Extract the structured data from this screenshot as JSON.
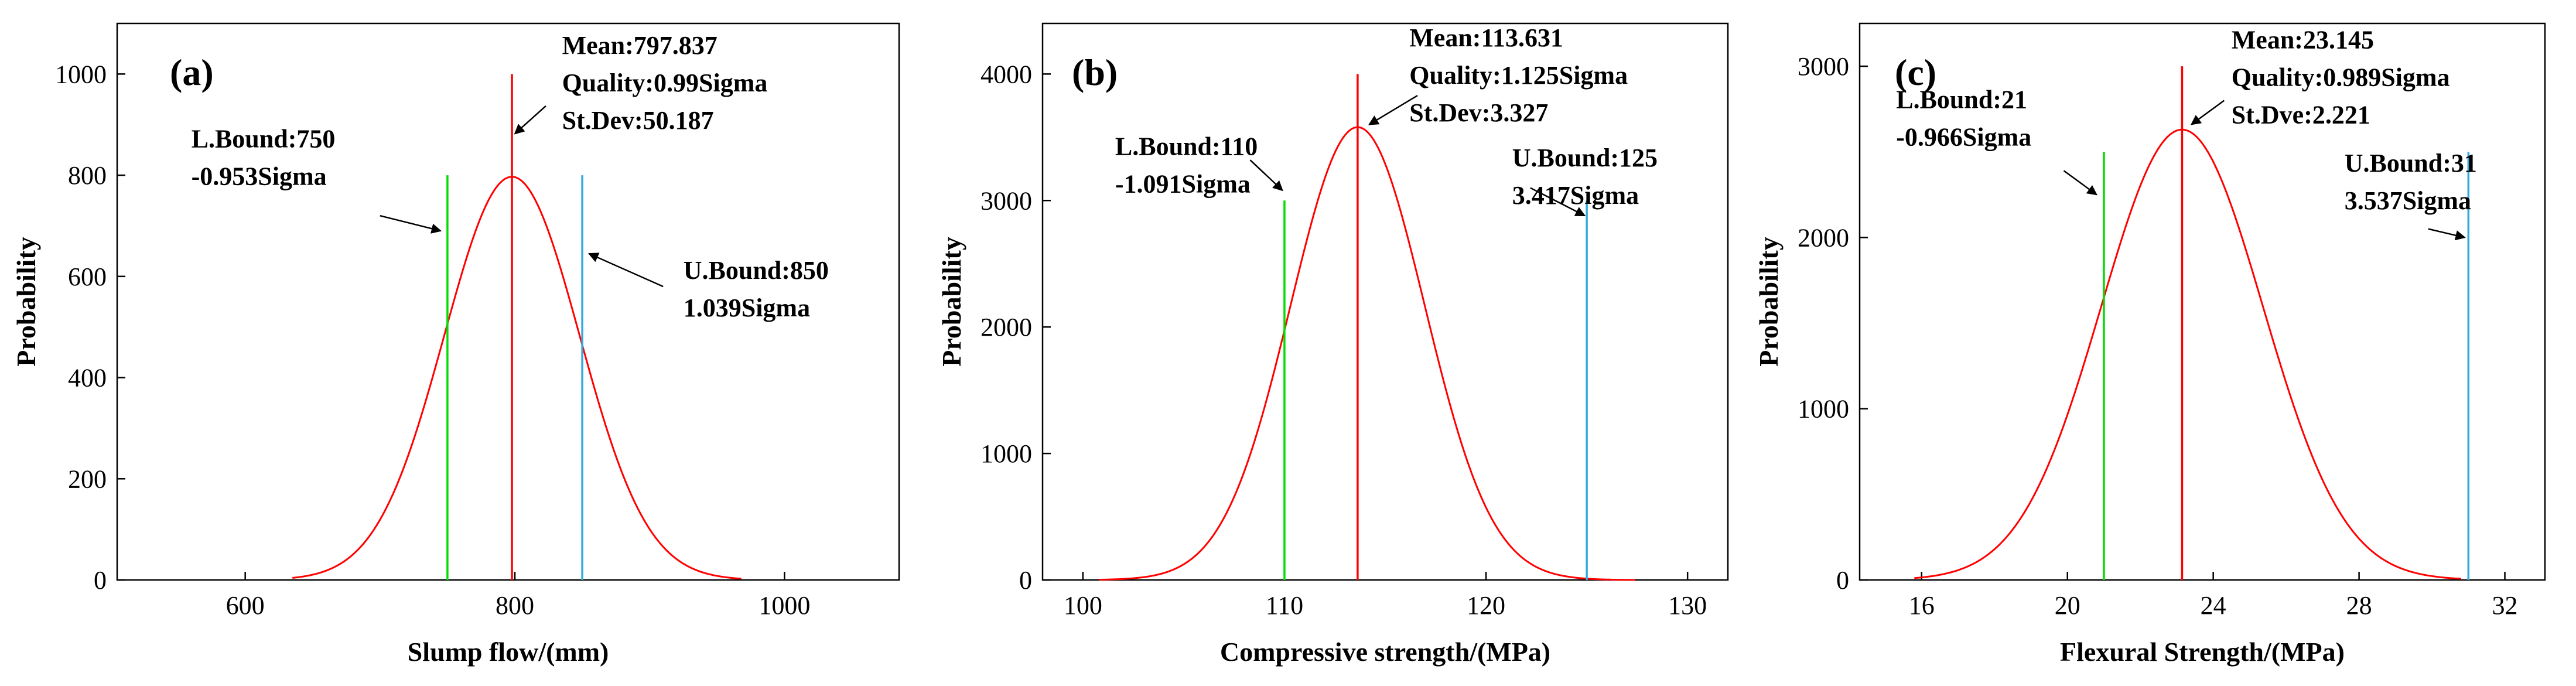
{
  "chart_data": [
    {
      "type": "line",
      "panel_label": "(a)",
      "xlabel": "Slump flow/(mm)",
      "ylabel": "Probability",
      "xlim": [
        505,
        1085
      ],
      "ylim": [
        0,
        1100
      ],
      "xticks": [
        600,
        800,
        1000
      ],
      "yticks": [
        0,
        200,
        400,
        600,
        800,
        1000
      ],
      "xtick_labels": [
        "600",
        "800",
        "1000"
      ],
      "ytick_labels": [
        "0",
        "200",
        "400",
        "600",
        "800",
        "1000"
      ],
      "curve": {
        "mean": 797.837,
        "sd": 50.187,
        "peak": 797,
        "x_range": [
          635,
          968
        ],
        "color": "#ff0000"
      },
      "lines": [
        {
          "name": "mean",
          "x": 797.837,
          "y_top": 1000,
          "color": "#ff0000"
        },
        {
          "name": "lower-bound",
          "x": 750,
          "y_top": 800,
          "color": "#00dd00"
        },
        {
          "name": "upper-bound",
          "x": 850,
          "y_top": 800,
          "color": "#33aadd"
        }
      ],
      "annotations": [
        {
          "name": "mean-label",
          "lines": [
            "Mean:797.837",
            "Quality:0.99Sigma",
            "St.Dev:50.187"
          ],
          "anchor_x": 835,
          "anchor_y": 1040,
          "arrow_from": [
            823,
            937
          ],
          "arrow_to": [
            800,
            882
          ]
        },
        {
          "name": "lower-bound-label",
          "lines": [
            "L.Bound:750",
            "-0.953Sigma"
          ],
          "anchor_x": 560,
          "anchor_y": 855,
          "arrow_from": [
            700,
            720
          ],
          "arrow_to": [
            745,
            690
          ]
        },
        {
          "name": "upper-bound-label",
          "lines": [
            "U.Bound:850",
            "1.039Sigma"
          ],
          "anchor_x": 925,
          "anchor_y": 595,
          "arrow_from": [
            910,
            580
          ],
          "arrow_to": [
            855,
            645
          ]
        }
      ]
    },
    {
      "type": "line",
      "panel_label": "(b)",
      "xlabel": "Compressive strength/(MPa)",
      "ylabel": "Probability",
      "xlim": [
        98,
        132
      ],
      "ylim": [
        0,
        4400
      ],
      "xticks": [
        100,
        110,
        120,
        130
      ],
      "yticks": [
        0,
        1000,
        2000,
        3000,
        4000
      ],
      "xtick_labels": [
        "100",
        "110",
        "120",
        "130"
      ],
      "ytick_labels": [
        "0",
        "1000",
        "2000",
        "3000",
        "4000"
      ],
      "curve": {
        "mean": 113.631,
        "sd": 3.327,
        "peak": 3580,
        "x_range": [
          100.8,
          127.4
        ],
        "color": "#ff0000"
      },
      "lines": [
        {
          "name": "mean",
          "x": 113.631,
          "y_top": 4000,
          "color": "#ff0000"
        },
        {
          "name": "lower-bound",
          "x": 110,
          "y_top": 3000,
          "color": "#00dd00"
        },
        {
          "name": "upper-bound",
          "x": 125,
          "y_top": 3000,
          "color": "#33aadd"
        }
      ],
      "annotations": [
        {
          "name": "mean-label",
          "lines": [
            "Mean:113.631",
            "Quality:1.125Sigma",
            "St.Dev:3.327"
          ],
          "anchor_x": 116.2,
          "anchor_y": 4220,
          "arrow_from": [
            116.6,
            3830
          ],
          "arrow_to": [
            114.2,
            3600
          ]
        },
        {
          "name": "lower-bound-label",
          "lines": [
            "L.Bound:110",
            "-1.091Sigma"
          ],
          "anchor_x": 101.6,
          "anchor_y": 3360,
          "arrow_from": [
            108.3,
            3320
          ],
          "arrow_to": [
            109.9,
            3080
          ]
        },
        {
          "name": "upper-bound-label",
          "lines": [
            "U.Bound:125",
            "3.417Sigma"
          ],
          "anchor_x": 121.3,
          "anchor_y": 3270,
          "arrow_from": [
            122.2,
            3100
          ],
          "arrow_to": [
            124.9,
            2880
          ]
        }
      ]
    },
    {
      "type": "line",
      "panel_label": "(c)",
      "xlabel": "Flexural Strength/(MPa)",
      "ylabel": "Probability",
      "xlim": [
        14.3,
        33.1
      ],
      "ylim": [
        0,
        3250
      ],
      "xticks": [
        16,
        20,
        24,
        28,
        32
      ],
      "yticks": [
        0,
        1000,
        2000,
        3000
      ],
      "xtick_labels": [
        "16",
        "20",
        "24",
        "28",
        "32"
      ],
      "ytick_labels": [
        "0",
        "1000",
        "2000",
        "3000"
      ],
      "curve": {
        "mean": 23.145,
        "sd": 2.221,
        "peak": 2630,
        "x_range": [
          15.8,
          30.8
        ],
        "color": "#ff0000"
      },
      "lines": [
        {
          "name": "mean",
          "x": 23.145,
          "y_top": 3000,
          "color": "#ff0000"
        },
        {
          "name": "lower-bound",
          "x": 21,
          "y_top": 2500,
          "color": "#00dd00"
        },
        {
          "name": "upper-bound",
          "x": 31,
          "y_top": 2500,
          "color": "#33aadd"
        }
      ],
      "annotations": [
        {
          "name": "mean-label",
          "lines": [
            "Mean:23.145",
            "Quality:0.989Sigma",
            "St.Dve:2.221"
          ],
          "anchor_x": 24.5,
          "anchor_y": 3105,
          "arrow_from": [
            24.3,
            2800
          ],
          "arrow_to": [
            23.4,
            2660
          ]
        },
        {
          "name": "lower-bound-label",
          "lines": [
            "L.Bound:21",
            "-0.966Sigma"
          ],
          "anchor_x": 15.3,
          "anchor_y": 2755,
          "arrow_from": [
            19.9,
            2390
          ],
          "arrow_to": [
            20.8,
            2250
          ]
        },
        {
          "name": "upper-bound-label",
          "lines": [
            "U.Bound:31",
            "3.537Sigma"
          ],
          "anchor_x": 27.6,
          "anchor_y": 2385,
          "arrow_from": [
            29.9,
            2050
          ],
          "arrow_to": [
            30.9,
            2000
          ]
        }
      ]
    }
  ]
}
